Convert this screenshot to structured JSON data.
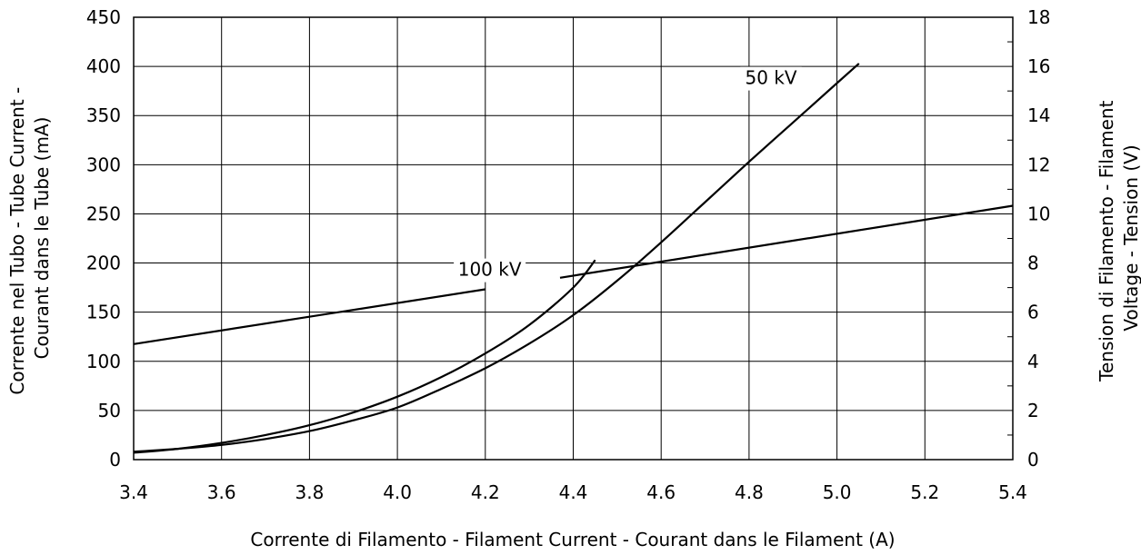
{
  "chart_data": {
    "type": "line",
    "x_label": "Corrente di Filamento - Filament Current - Courant dans le Filament  (A)",
    "y_left_label": [
      "Corrente nel Tubo - Tube Current -",
      "Courant dans le Tube   (mA)"
    ],
    "y_right_label": [
      "Tension di Filamento -     Filament",
      "Voltage - Tension     (V)"
    ],
    "xlim": [
      3.4,
      5.4
    ],
    "ylim_left": [
      0,
      450
    ],
    "ylim_right": [
      0,
      18
    ],
    "x_ticks": [
      "3.4",
      "3.6",
      "3.8",
      "4.0",
      "4.2",
      "4.4",
      "4.6",
      "4.8",
      "5.0",
      "5.2",
      "5.4"
    ],
    "y_left_ticks": [
      "0",
      "50",
      "100",
      "150",
      "200",
      "250",
      "300",
      "350",
      "400",
      "450"
    ],
    "y_right_ticks": [
      "0",
      "2",
      "4",
      "6",
      "8",
      "10",
      "12",
      "14",
      "16",
      "18"
    ],
    "grid": true,
    "annotations": [
      {
        "text": "50 kV",
        "series": "50 kV"
      },
      {
        "text": "100 kV",
        "series": "100 kV"
      }
    ],
    "series": [
      {
        "name": "100 kV",
        "axis": "left",
        "x": [
          3.4,
          3.5,
          3.6,
          3.7,
          3.8,
          3.9,
          4.0,
          4.1,
          4.2,
          4.3,
          4.4,
          4.45
        ],
        "y": [
          7,
          11,
          17,
          25,
          35,
          48,
          64,
          84,
          108,
          137,
          175,
          203
        ]
      },
      {
        "name": "50 kV",
        "axis": "left",
        "x": [
          3.4,
          3.5,
          3.6,
          3.7,
          3.8,
          3.9,
          4.0,
          4.1,
          4.2,
          4.3,
          4.4,
          4.5,
          4.6,
          4.7,
          4.8,
          4.9,
          5.0,
          5.05
        ],
        "y": [
          8,
          11,
          15,
          21,
          29,
          40,
          53,
          72,
          93,
          118,
          147,
          182,
          221,
          262,
          303,
          343,
          383,
          403
        ]
      },
      {
        "name": "Filament Voltage",
        "axis": "right",
        "x": [
          3.4,
          4.2,
          4.37,
          5.4
        ],
        "y": [
          4.7,
          6.93,
          7.4,
          10.33
        ]
      }
    ]
  }
}
